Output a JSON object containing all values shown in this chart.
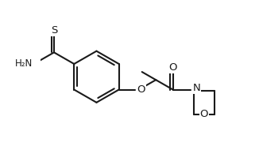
{
  "bg": "#ffffff",
  "lc": "#1a1a1a",
  "lw": 1.5,
  "fw": 3.26,
  "fh": 1.9,
  "dpi": 100,
  "xlim": [
    0.0,
    1.0
  ],
  "ylim": [
    0.0,
    1.0
  ]
}
